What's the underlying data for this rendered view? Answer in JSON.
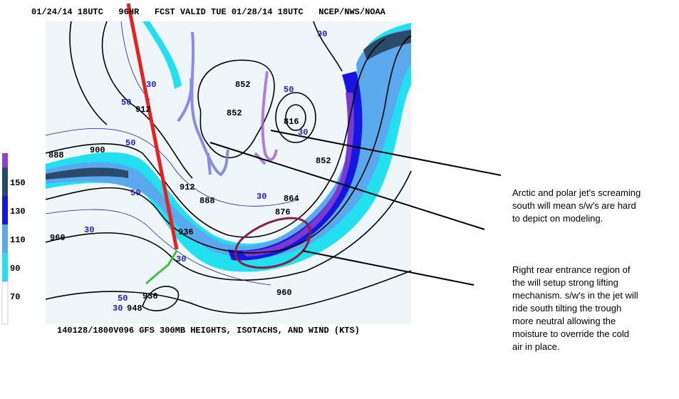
{
  "header": "01/24/14 18UTC   96HR   FCST VALID TUE 01/28/14 18UTC   NCEP/NWS/NOAA",
  "footer": "140128/1800V096 GFS 300MB HEIGHTS, ISOTACHS, AND WIND (KTS)",
  "legend": {
    "ticks": [
      150,
      130,
      110,
      90,
      70
    ]
  },
  "height_labels": [
    "888",
    "900",
    "912",
    "912",
    "888",
    "852",
    "852",
    "816",
    "864",
    "876",
    "852",
    "936",
    "936",
    "948",
    "960",
    "960"
  ],
  "speed_labels": [
    "50",
    "50",
    "50",
    "50",
    "30",
    "30",
    "30",
    "30",
    "30",
    "30",
    "50",
    "90"
  ],
  "annotations": [
    {
      "lines": [
        "Arctic and polar jet's screaming",
        "south will mean s/w's are hard",
        "to depict on modeling."
      ]
    },
    {
      "lines": [
        "Right rear entrance region of",
        "the will setup strong lifting",
        "mechanism. s/w's in the jet will",
        "ride south tilting the trough",
        "more neutral allowing the",
        "moisture to override the cold",
        "air in place."
      ]
    }
  ]
}
